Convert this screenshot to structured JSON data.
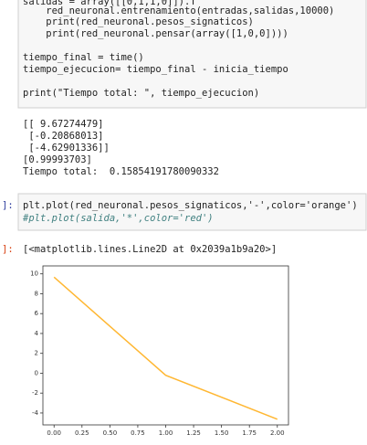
{
  "cell_1": {
    "code": [
      "salidas = array([[0,1,1,0]]).T",
      "    red_neuronal.entrenamiento(entradas,salidas,10000)",
      "    print(red_neuronal.pesos_signaticos)",
      "    print(red_neuronal.pensar(array([1,0,0])))",
      "tiempo_final = time()",
      "tiempo_ejecucion= tiempo_final - inicia_tiempo",
      "print(\"Tiempo total: \", tiempo_ejecucion)"
    ],
    "output": [
      "[[ 9.67274479]",
      " [-0.20868013]",
      " [-4.62901336]]",
      "[0.99993703]",
      "Tiempo total:  0.15854191780090332"
    ]
  },
  "cell_2": {
    "in_prompt": "]:",
    "code": [
      "plt.plot(red_neuronal.pesos_signaticos,'-',color='orange')",
      "#plt.plot(salida,'*',color='red')"
    ],
    "out_prompt": "]:",
    "output": "[<matplotlib.lines.Line2D at 0x2039a1b9a20>]"
  },
  "chart_data": {
    "type": "line",
    "x": [
      0,
      1,
      2
    ],
    "series": [
      {
        "color": "#ffb732",
        "values": [
          9.67274479,
          -0.20868013,
          -4.62901336
        ]
      }
    ],
    "xlim": [
      -0.1,
      2.1
    ],
    "xticks": [
      {
        "value": 0,
        "label": "0.00"
      },
      {
        "value": 0.25,
        "label": "0.25"
      },
      {
        "value": 0.5,
        "label": "0.50"
      },
      {
        "value": 0.75,
        "label": "0.75"
      },
      {
        "value": 1,
        "label": "1.00"
      },
      {
        "value": 1.25,
        "label": "1.25"
      },
      {
        "value": 1.5,
        "label": "1.50"
      },
      {
        "value": 1.75,
        "label": "1.75"
      },
      {
        "value": 2,
        "label": "2.00"
      }
    ],
    "ylim": [
      -5.2,
      10.8
    ],
    "yticks": [
      10,
      8,
      6,
      4,
      2,
      0,
      -2,
      -4
    ]
  }
}
